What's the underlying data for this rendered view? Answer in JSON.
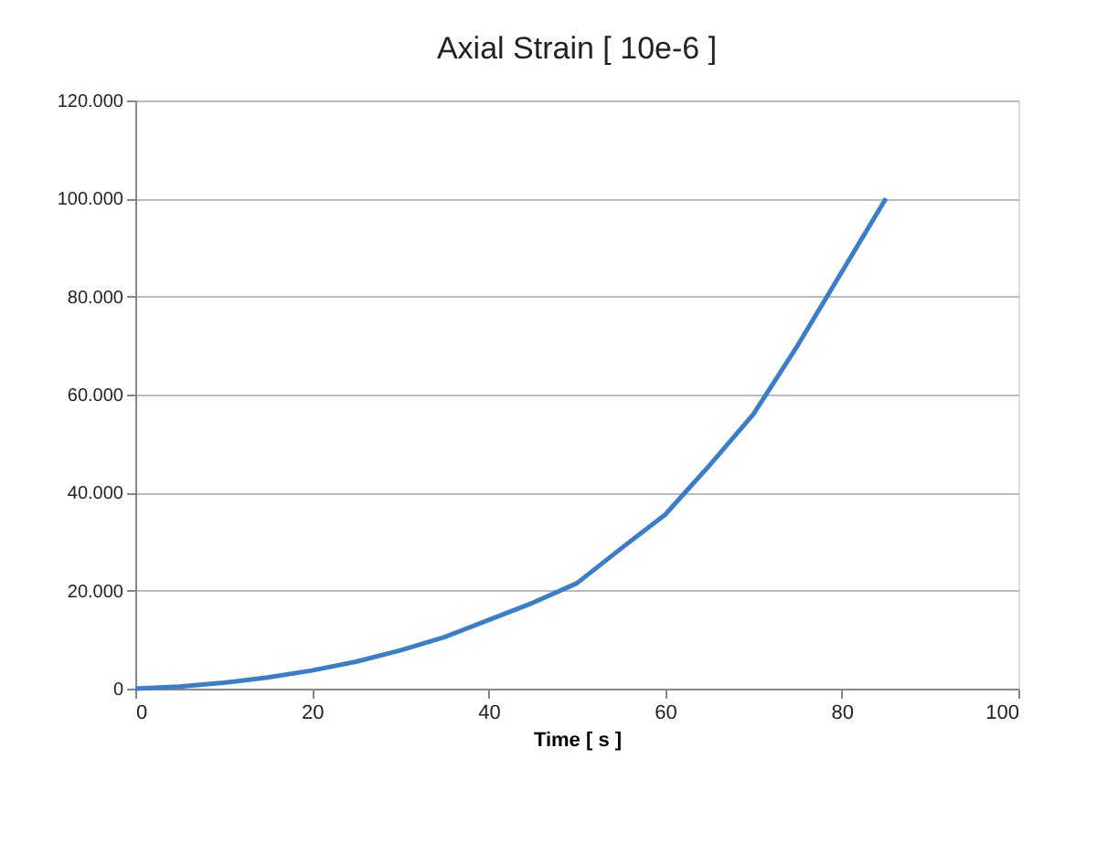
{
  "chart_data": {
    "type": "line",
    "title": "Axial Strain [ 10e-6 ]",
    "xlabel": "Time [ s ]",
    "x": [
      0,
      5,
      10,
      15,
      20,
      25,
      30,
      35,
      40,
      45,
      50,
      55.3,
      60,
      65,
      70,
      75,
      80,
      85
    ],
    "series": [
      {
        "color": "#3a7dc9",
        "values": [
          0,
          400,
          1200,
          2300,
          3700,
          5500,
          7800,
          10500,
          14000,
          17500,
          21500,
          29000,
          35500,
          45500,
          56000,
          70000,
          85000,
          100000
        ]
      }
    ],
    "xlim": [
      0,
      100
    ],
    "xticks": [
      0,
      20,
      40,
      60,
      80,
      100
    ],
    "ylim": [
      0,
      120000
    ],
    "yticks": [
      0,
      {
        "value": 20000,
        "label": "20.000"
      },
      {
        "value": 40000,
        "label": "40.000"
      },
      {
        "value": 60000,
        "label": "60.000"
      },
      {
        "value": 80000,
        "label": "80.000"
      },
      {
        "value": 100000,
        "label": "100.000"
      },
      {
        "value": 120000,
        "label": "120.000"
      }
    ],
    "grid": "y",
    "marker": "none",
    "line_style": "solid"
  }
}
